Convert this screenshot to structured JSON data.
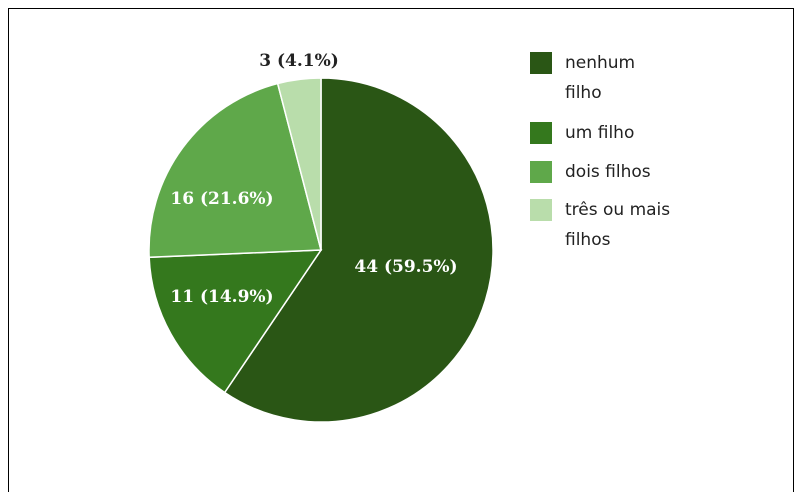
{
  "chart_data": {
    "type": "pie",
    "slices": [
      {
        "label": "nenhum filho",
        "value": 44,
        "percent": 59.5,
        "display": "44 (59.5%)",
        "color": "#2a5615",
        "label_color": "#ffffff"
      },
      {
        "label": "um filho",
        "value": 11,
        "percent": 14.9,
        "display": "11 (14.9%)",
        "color": "#34781d",
        "label_color": "#ffffff"
      },
      {
        "label": "dois filhos",
        "value": 16,
        "percent": 21.6,
        "display": "16 (21.6%)",
        "color": "#5fa84a",
        "label_color": "#ffffff"
      },
      {
        "label": "três ou mais filhos",
        "value": 3,
        "percent": 4.1,
        "display": "3 (4.1%)",
        "color": "#b9ddab",
        "label_color": "#222222"
      }
    ],
    "legend": {
      "placement": "right",
      "entries": [
        {
          "lines": [
            "nenhum",
            "filho"
          ],
          "color": "#2a5615"
        },
        {
          "lines": [
            "um filho"
          ],
          "color": "#34781d"
        },
        {
          "lines": [
            "dois filhos"
          ],
          "color": "#5fa84a"
        },
        {
          "lines": [
            "três ou mais",
            "filhos"
          ],
          "color": "#b9ddab"
        }
      ]
    },
    "start_angle_deg": 0,
    "direction": "clockwise"
  }
}
